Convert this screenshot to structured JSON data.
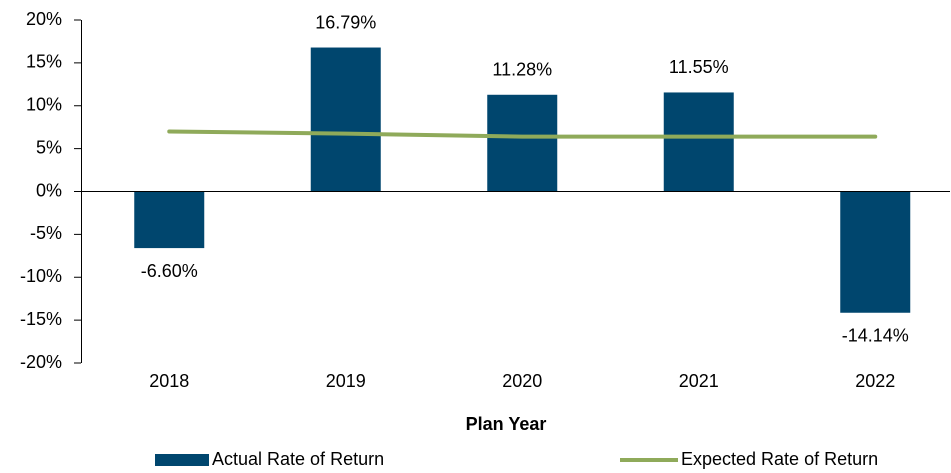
{
  "chart_data": {
    "type": "bar",
    "x_label": "Plan Year",
    "categories": [
      "2018",
      "2019",
      "2020",
      "2021",
      "2022"
    ],
    "series": [
      {
        "name": "Actual Rate of Return",
        "color": "#00466e",
        "type": "bar",
        "values": [
          -6.6,
          16.79,
          11.28,
          11.55,
          -14.14
        ],
        "value_labels": [
          "-6.60%",
          "16.79%",
          "11.28%",
          "11.55%",
          "-14.14%"
        ]
      },
      {
        "name": "Expected Rate of Return",
        "color": "#8faa5a",
        "type": "line",
        "values": [
          7.0,
          6.75,
          6.4,
          6.4,
          6.4
        ]
      }
    ],
    "ylim": [
      -20,
      20
    ],
    "yticks": [
      {
        "value": -20,
        "label": "-20%"
      },
      {
        "value": -15,
        "label": "-15%"
      },
      {
        "value": -10,
        "label": "-10%"
      },
      {
        "value": -5,
        "label": "-5%"
      },
      {
        "value": 0,
        "label": "0%"
      },
      {
        "value": 5,
        "label": "5%"
      },
      {
        "value": 10,
        "label": "10%"
      },
      {
        "value": 15,
        "label": "15%"
      },
      {
        "value": 20,
        "label": "20%"
      }
    ],
    "legend": "bottom"
  }
}
